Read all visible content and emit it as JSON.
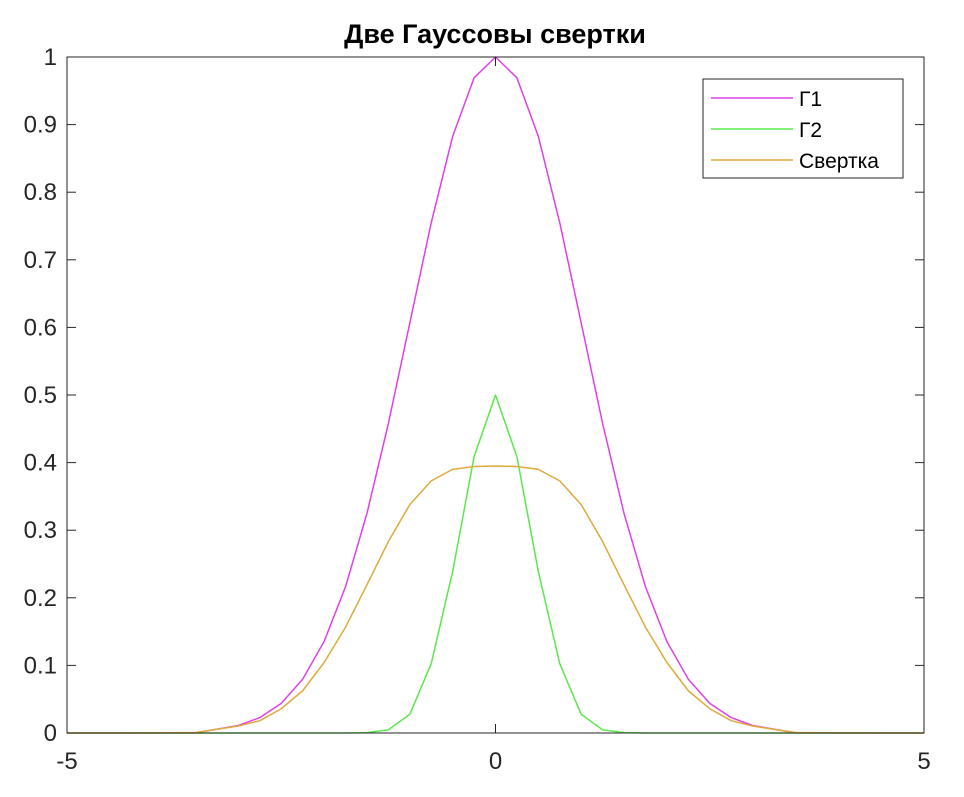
{
  "chart_data": {
    "type": "line",
    "title": "Две Гауссовы свертки",
    "xlabel": "",
    "ylabel": "",
    "xlim": [
      -5,
      5
    ],
    "ylim": [
      0,
      1
    ],
    "x_ticks": [
      -5,
      0,
      5
    ],
    "x_tick_labels": [
      "-5",
      "0",
      "5"
    ],
    "y_ticks": [
      0,
      0.1,
      0.2,
      0.3,
      0.4,
      0.5,
      0.6,
      0.7,
      0.8,
      0.9,
      1
    ],
    "y_tick_labels": [
      "0",
      "0.1",
      "0.2",
      "0.3",
      "0.4",
      "0.5",
      "0.6",
      "0.7",
      "0.8",
      "0.9",
      "1"
    ],
    "grid": false,
    "legend": {
      "position": "top-right",
      "boxed": true
    },
    "x": [
      -5,
      -4.5,
      -4,
      -3.5,
      -3,
      -2.75,
      -2.5,
      -2.25,
      -2,
      -1.75,
      -1.5,
      -1.25,
      -1,
      -0.75,
      -0.5,
      -0.25,
      0,
      0.25,
      0.5,
      0.75,
      1,
      1.25,
      1.5,
      1.75,
      2,
      2.25,
      2.5,
      2.75,
      3,
      3.5,
      4,
      4.5,
      5
    ],
    "series": [
      {
        "name": "Г1",
        "color": "#e040e8",
        "values": [
          0,
          0,
          0,
          0.0002,
          0.0111,
          0.0228,
          0.0439,
          0.0796,
          0.1353,
          0.2163,
          0.3247,
          0.4578,
          0.6065,
          0.7548,
          0.8825,
          0.9692,
          1,
          0.9692,
          0.8825,
          0.7548,
          0.6065,
          0.4578,
          0.3247,
          0.2163,
          0.1353,
          0.0796,
          0.0439,
          0.0228,
          0.0111,
          0.0002,
          0,
          0,
          0
        ]
      },
      {
        "name": "Г2",
        "color": "#5ae84c",
        "values": [
          0,
          0,
          0,
          0,
          0,
          0,
          0,
          0,
          0,
          0,
          0.0006,
          0.0047,
          0.0277,
          0.1025,
          0.2388,
          0.4086,
          0.5,
          0.4086,
          0.2388,
          0.1025,
          0.0277,
          0.0047,
          0.0006,
          0,
          0,
          0,
          0,
          0,
          0,
          0,
          0,
          0,
          0
        ]
      },
      {
        "name": "Свертка",
        "color": "#deaa3a",
        "values": [
          0,
          0,
          0.0001,
          0.0007,
          0.0103,
          0.0182,
          0.0359,
          0.0625,
          0.1043,
          0.1565,
          0.2192,
          0.2832,
          0.3379,
          0.373,
          0.39,
          0.3942,
          0.395,
          0.3942,
          0.39,
          0.373,
          0.3379,
          0.2832,
          0.2192,
          0.1565,
          0.1043,
          0.0625,
          0.0359,
          0.0182,
          0.0103,
          0.0007,
          0.0001,
          0,
          0
        ]
      }
    ]
  }
}
